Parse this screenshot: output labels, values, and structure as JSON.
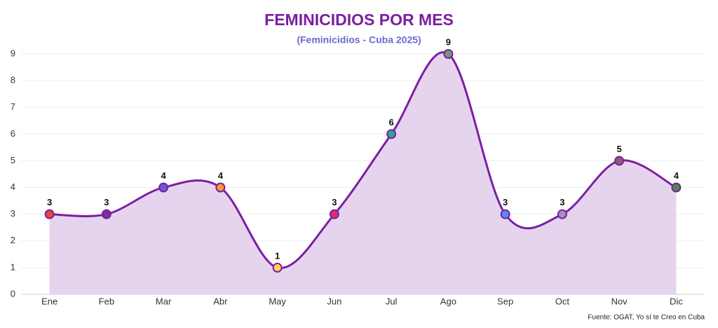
{
  "chart_data": {
    "type": "line",
    "title": "FEMINICIDIOS POR MES",
    "subtitle": "(Feminicidios - Cuba 2025)",
    "source": "Fuente: OGAT, Yo sí te Creo en Cuba",
    "categories": [
      "Ene",
      "Feb",
      "Mar",
      "Abr",
      "May",
      "Jun",
      "Jul",
      "Ago",
      "Sep",
      "Oct",
      "Nov",
      "Dic"
    ],
    "values": [
      3,
      3,
      4,
      4,
      1,
      3,
      6,
      9,
      3,
      3,
      5,
      4
    ],
    "color": "#7b1fa2",
    "area_color": "#e6d4ee",
    "point_colors": [
      "#e8453c",
      "#7b2fa0",
      "#6a5acd",
      "#f59b2e",
      "#ffd54f",
      "#d6336c",
      "#26a69a",
      "#6a9e6a",
      "#4f8ff7",
      "#a68fb8",
      "#8d5a6e",
      "#3e8e41"
    ],
    "ylim": [
      0,
      9
    ],
    "yticks": [
      0,
      1,
      2,
      3,
      4,
      5,
      6,
      7,
      8,
      9
    ],
    "grid": true,
    "smooth": true
  }
}
